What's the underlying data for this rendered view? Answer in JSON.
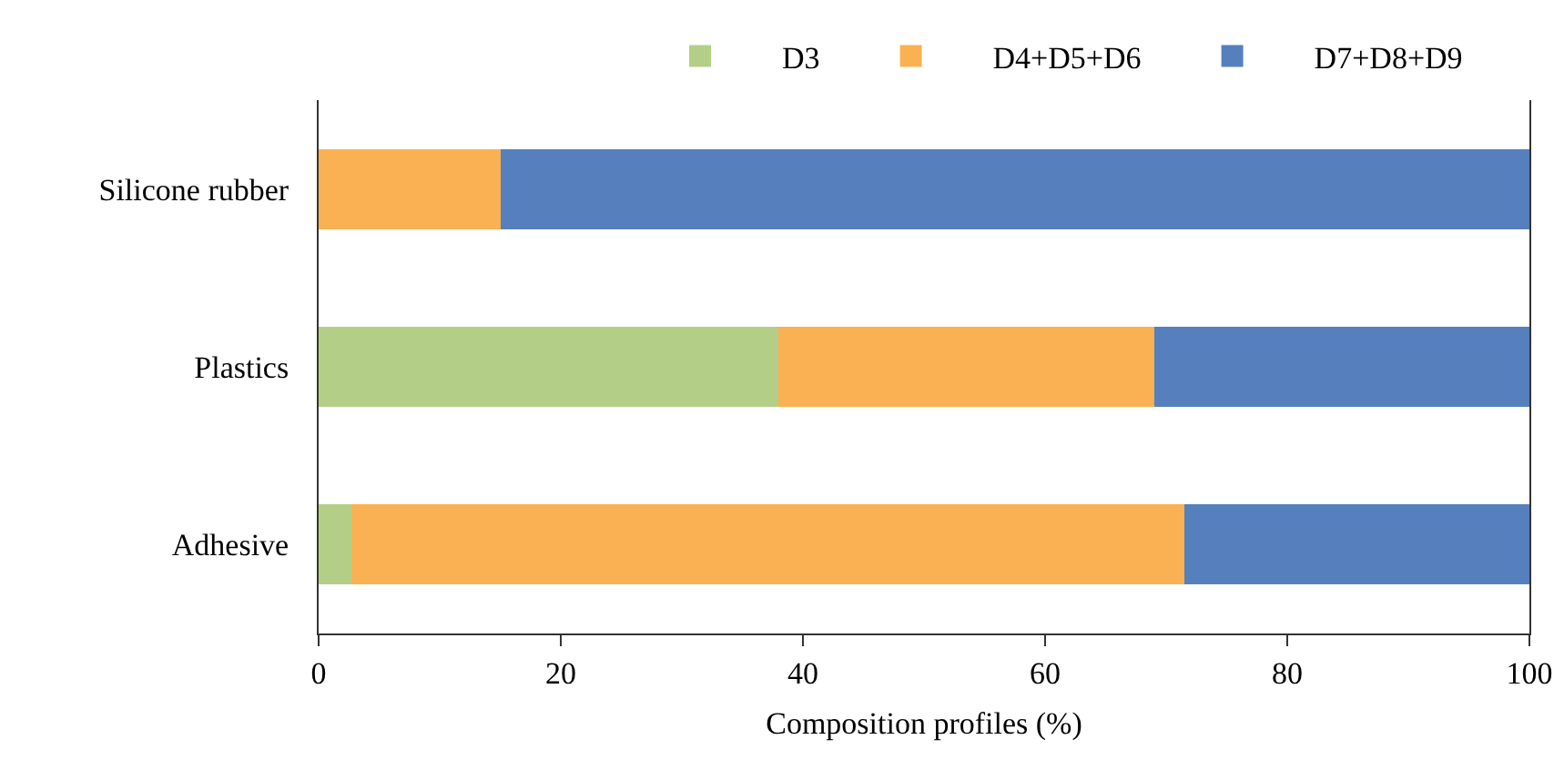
{
  "chart_data": {
    "type": "bar",
    "orientation": "horizontal",
    "stacked": true,
    "xlabel": "Composition profiles (%)",
    "categories": [
      "Silicone rubber",
      "Plastics",
      "Adhesive"
    ],
    "series": [
      {
        "name": "D3",
        "color": "#b3cf87",
        "values": [
          0,
          38,
          2.7
        ]
      },
      {
        "name": "D4+D5+D6",
        "color": "#fab153",
        "values": [
          15,
          31,
          68.8
        ]
      },
      {
        "name": "D7+D8+D9",
        "color": "#5580bd",
        "values": [
          85,
          31,
          28.5
        ]
      }
    ],
    "xlim": [
      0,
      100
    ],
    "xticks": [
      0,
      20,
      40,
      60,
      80,
      100
    ],
    "grid": false,
    "legend": "top"
  }
}
